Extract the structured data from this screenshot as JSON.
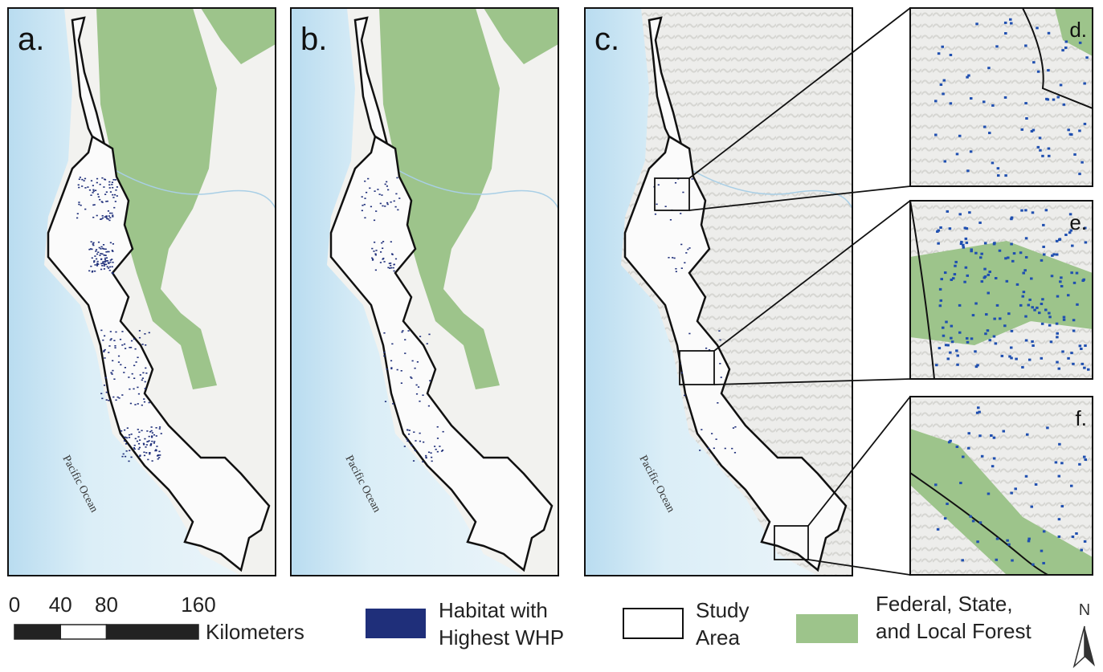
{
  "panels": [
    {
      "label": "a.",
      "ocean_label": "Pacific Ocean"
    },
    {
      "label": "b.",
      "ocean_label": "Pacific Ocean"
    },
    {
      "label": "c.",
      "ocean_label": "Pacific Ocean"
    }
  ],
  "insets": [
    {
      "label": "d."
    },
    {
      "label": "e."
    },
    {
      "label": "f."
    }
  ],
  "scale_bar": {
    "ticks": [
      0,
      40,
      80,
      160
    ],
    "unit": "Kilometers"
  },
  "legend": [
    {
      "label": "Habitat with Highest WHP",
      "color": "#1f2f7a"
    },
    {
      "label": "Study Area",
      "color": "#ffffff"
    },
    {
      "label": "Federal, State, and Local Forest",
      "color": "#9dc48b"
    }
  ],
  "north_arrow": "N"
}
